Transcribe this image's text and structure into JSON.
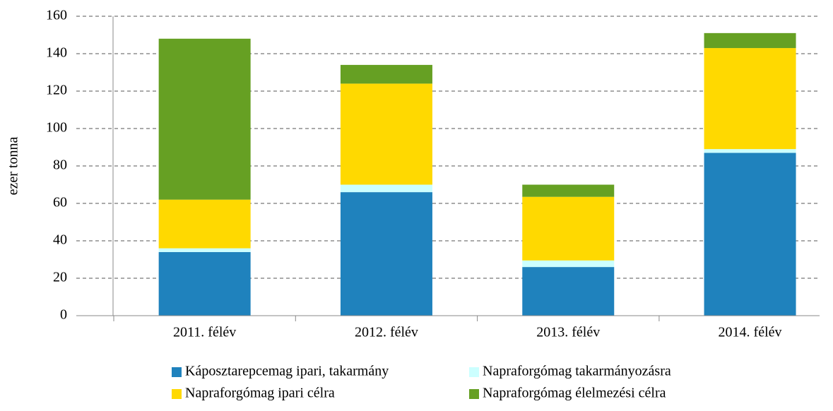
{
  "chart_data": {
    "type": "stacked_bar",
    "y_label": "ezer tonna",
    "categories": [
      "2011. félév",
      "2012. félév",
      "2013. félév",
      "2014. félév"
    ],
    "series": [
      {
        "name": "Káposztarepcemag ipari, takarmány",
        "color": "#1f82bd",
        "values": [
          34,
          66,
          26,
          87
        ]
      },
      {
        "name": "Napraforgómag takarmányozásra",
        "color": "#ccffff",
        "values": [
          2,
          4,
          3.5,
          2
        ]
      },
      {
        "name": "Napraforgómag ipari célra",
        "color": "#ffd900",
        "values": [
          26,
          54,
          34,
          54
        ]
      },
      {
        "name": "Napraforgómag élelmezési célra",
        "color": "#66a023",
        "values": [
          86,
          10,
          6.5,
          8
        ]
      }
    ],
    "ylim": [
      0,
      160
    ],
    "yticks": [
      0,
      20,
      40,
      60,
      80,
      100,
      120,
      140,
      160
    ],
    "grid": true,
    "legend": "bottom"
  }
}
